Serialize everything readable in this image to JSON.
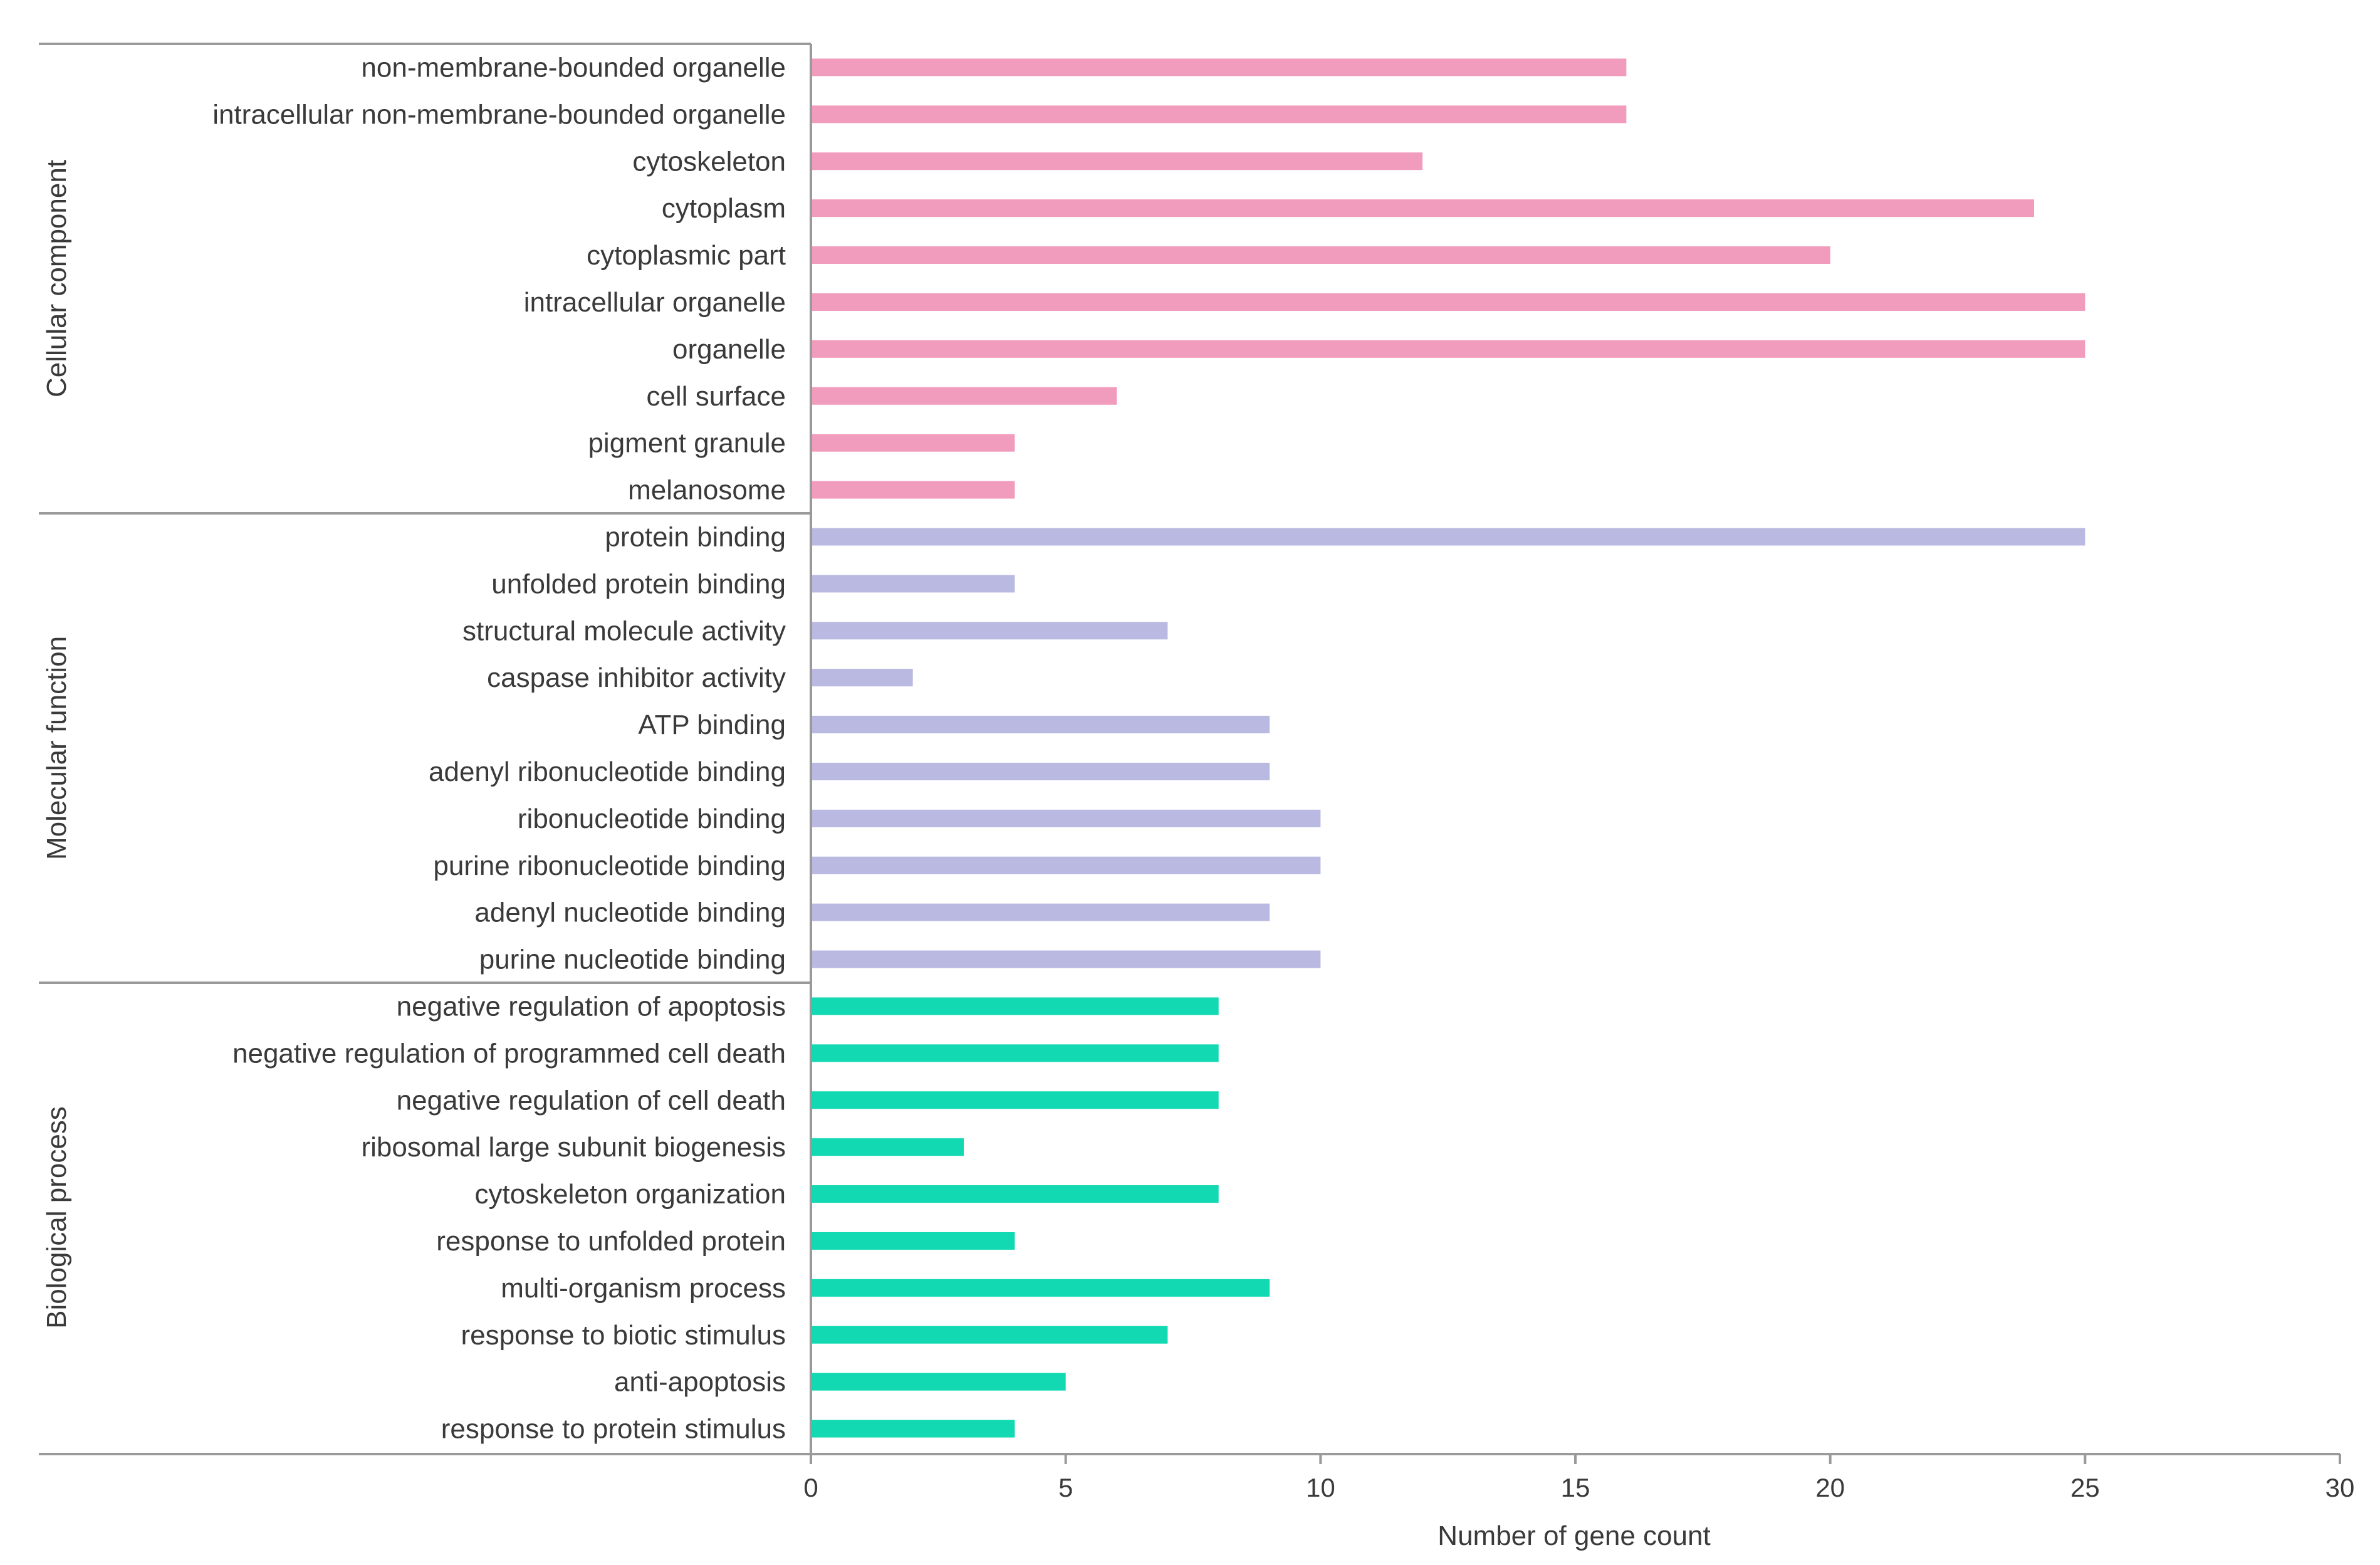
{
  "chart_data": {
    "type": "bar",
    "orientation": "horizontal",
    "title": "",
    "xlabel": "Number of gene count",
    "ylabel": "",
    "xlim": [
      0,
      30
    ],
    "xticks": [
      0,
      5,
      10,
      15,
      20,
      25,
      30
    ],
    "grid": false,
    "legend": "none",
    "groups": [
      {
        "name": "Cellular component",
        "color": "#f19bbd",
        "categories": [
          "non-membrane-bounded organelle",
          "intracellular non-membrane-bounded organelle",
          "cytoskeleton",
          "cytoplasm",
          "cytoplasmic part",
          "intracellular organelle",
          "organelle",
          "cell surface",
          "pigment granule",
          "melanosome"
        ],
        "values": [
          16,
          16,
          12,
          24,
          20,
          25,
          25,
          6,
          4,
          4
        ]
      },
      {
        "name": "Molecular function",
        "color": "#b9b9e1",
        "categories": [
          "protein binding",
          "unfolded protein binding",
          "structural molecule activity",
          "caspase inhibitor activity",
          "ATP binding",
          "adenyl ribonucleotide binding",
          "ribonucleotide binding",
          "purine ribonucleotide binding",
          "adenyl nucleotide binding",
          "purine nucleotide binding"
        ],
        "values": [
          25,
          4,
          7,
          2,
          9,
          9,
          10,
          10,
          9,
          10
        ]
      },
      {
        "name": "Biological process",
        "color": "#12d9b1",
        "categories": [
          "negative regulation of apoptosis",
          "negative regulation of programmed cell death",
          "negative regulation of cell death",
          "ribosomal large subunit biogenesis",
          "cytoskeleton organization",
          "response to unfolded protein",
          "multi-organism process",
          "response to biotic stimulus",
          "anti-apoptosis",
          "response to protein stimulus"
        ],
        "values": [
          8,
          8,
          8,
          3,
          8,
          4,
          9,
          7,
          5,
          4
        ]
      }
    ]
  }
}
